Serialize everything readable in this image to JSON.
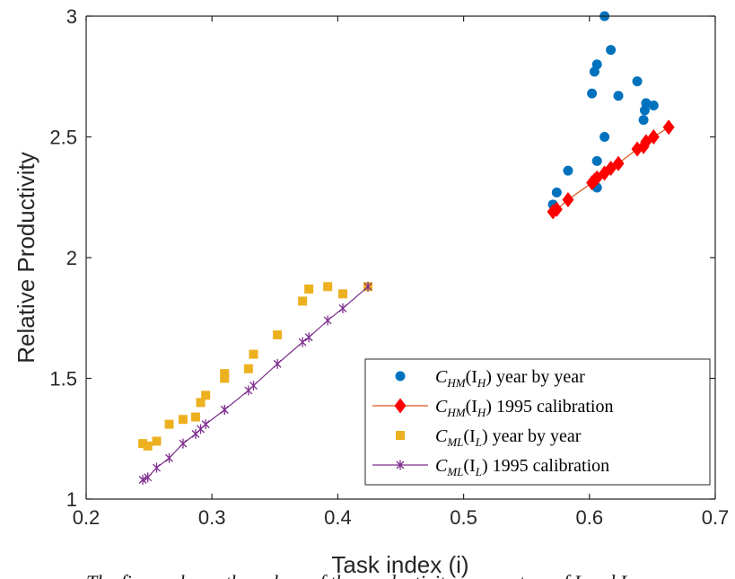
{
  "chart_data": {
    "type": "scatter",
    "title": "",
    "xlabel": "Task index (i)",
    "ylabel": "Relative Productivity",
    "xlim": [
      0.2,
      0.7
    ],
    "ylim": [
      1,
      3
    ],
    "x_ticks": [
      "0.2",
      "0.3",
      "0.4",
      "0.5",
      "0.6",
      "0.7"
    ],
    "y_ticks": [
      "1",
      "1.5",
      "2",
      "2.5",
      "3"
    ],
    "x_tick_values": [
      0.2,
      0.3,
      0.4,
      0.5,
      0.6,
      0.7
    ],
    "y_tick_values": [
      1,
      1.5,
      2,
      2.5,
      3
    ],
    "grid": false,
    "legend_position": "lower-right",
    "series": [
      {
        "key": "chm-year",
        "legend_main": "C",
        "legend_sub": "HM",
        "legend_arg_main": "(I",
        "legend_arg_sub": "H",
        "legend_rest": ") year by year",
        "style": "marker",
        "marker": "circle",
        "color": "#0072BD",
        "x": [
          0.571,
          0.574,
          0.583,
          0.602,
          0.604,
          0.606,
          0.606,
          0.606,
          0.612,
          0.612,
          0.617,
          0.623,
          0.638,
          0.643,
          0.644,
          0.645,
          0.651
        ],
        "y": [
          2.22,
          2.27,
          2.36,
          2.68,
          2.77,
          2.8,
          2.4,
          2.29,
          2.5,
          3.0,
          2.86,
          2.67,
          2.73,
          2.57,
          2.61,
          2.64,
          2.63
        ]
      },
      {
        "key": "chm-1995",
        "legend_main": "C",
        "legend_sub": "HM",
        "legend_arg_main": "(I",
        "legend_arg_sub": "H",
        "legend_rest": ") 1995 calibration",
        "style": "line-marker",
        "marker": "diamond",
        "color": "#FF0000",
        "line_color": "#D95319",
        "x": [
          0.571,
          0.574,
          0.583,
          0.602,
          0.604,
          0.606,
          0.612,
          0.617,
          0.623,
          0.638,
          0.643,
          0.645,
          0.651,
          0.663
        ],
        "y": [
          2.19,
          2.2,
          2.24,
          2.31,
          2.32,
          2.33,
          2.35,
          2.37,
          2.39,
          2.45,
          2.46,
          2.48,
          2.5,
          2.54
        ]
      },
      {
        "key": "cml-year",
        "legend_main": "C",
        "legend_sub": "ML",
        "legend_arg_main": "(I",
        "legend_arg_sub": "L",
        "legend_rest": ") year by year",
        "style": "marker",
        "marker": "square",
        "color": "#EDB120",
        "x": [
          0.245,
          0.249,
          0.256,
          0.266,
          0.277,
          0.287,
          0.291,
          0.295,
          0.31,
          0.31,
          0.329,
          0.333,
          0.352,
          0.372,
          0.377,
          0.392,
          0.404,
          0.424
        ],
        "y": [
          1.23,
          1.22,
          1.24,
          1.31,
          1.33,
          1.34,
          1.4,
          1.43,
          1.5,
          1.52,
          1.54,
          1.6,
          1.68,
          1.82,
          1.87,
          1.88,
          1.85,
          1.88
        ]
      },
      {
        "key": "cml-1995",
        "legend_main": "C",
        "legend_sub": "ML",
        "legend_arg_main": "(I",
        "legend_arg_sub": "L",
        "legend_rest": ") 1995 calibration",
        "style": "line-marker",
        "marker": "asterisk",
        "color": "#7E2F8E",
        "line_color": "#7E2F8E",
        "x": [
          0.245,
          0.249,
          0.256,
          0.266,
          0.277,
          0.287,
          0.291,
          0.295,
          0.31,
          0.31,
          0.329,
          0.333,
          0.352,
          0.372,
          0.377,
          0.392,
          0.404,
          0.424
        ],
        "y": [
          1.08,
          1.09,
          1.13,
          1.17,
          1.23,
          1.27,
          1.29,
          1.31,
          1.37,
          1.37,
          1.45,
          1.47,
          1.56,
          1.65,
          1.67,
          1.74,
          1.79,
          1.88
        ]
      }
    ]
  },
  "caption": {
    "visible_fragment": "The figure shows the values of the productivity parameters of I and L"
  },
  "colors": {
    "axis": "#262626",
    "background": "#ffffff"
  }
}
